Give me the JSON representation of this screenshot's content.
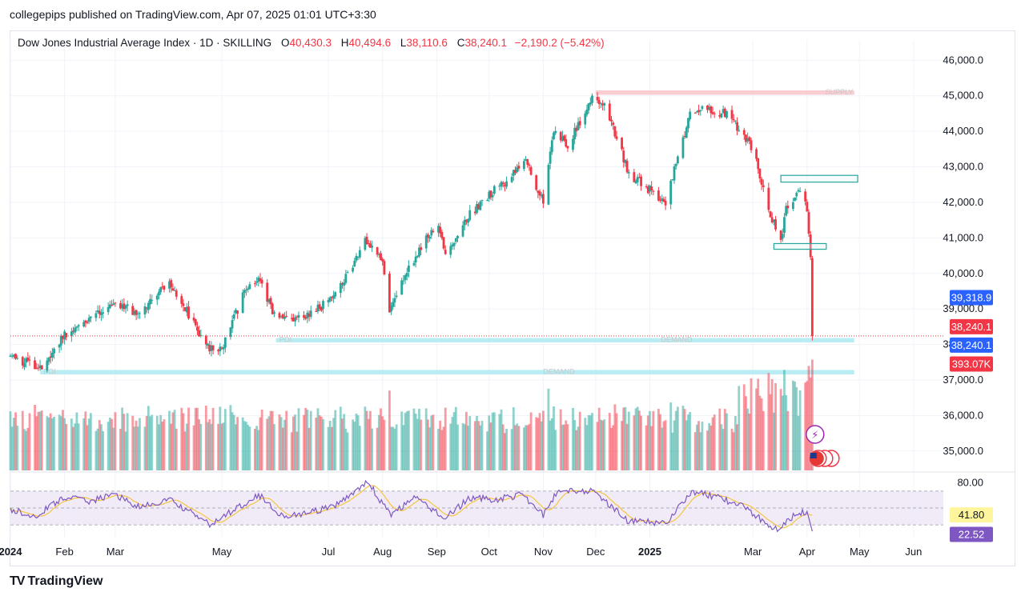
{
  "header": {
    "publisher_line": "collegepips published on TradingView.com, Apr 07, 2025 01:01 UTC+3:30"
  },
  "legend": {
    "symbol": "Dow Jones Industrial Average Index · 1D · SKILLING",
    "open_label": "O",
    "open": "40,430.3",
    "high_label": "H",
    "high": "40,494.6",
    "low_label": "L",
    "low": "38,110.6",
    "close_label": "C",
    "close": "38,240.1",
    "change": "−2,190.2 (−5.42%)"
  },
  "footer": {
    "logo_mark": "TV",
    "brand": "TradingView"
  },
  "colors": {
    "up": "#26a69a",
    "down": "#f23645",
    "rsi": "#7e57c2",
    "rsi_ma": "#f5c542",
    "rsi_band": "#ede7f6",
    "zone": "#b2ebf2",
    "supply": "#f8c8cc",
    "badge_blue": "#2962ff"
  },
  "chart_data": {
    "type": "candlestick",
    "price_axis": {
      "min": 34500,
      "max": 46300,
      "ticks": [
        {
          "v": 46000,
          "t": "46,000.0"
        },
        {
          "v": 45000,
          "t": "45,000.0"
        },
        {
          "v": 44000,
          "t": "44,000.0"
        },
        {
          "v": 43000,
          "t": "43,000.0"
        },
        {
          "v": 42000,
          "t": "42,000.0"
        },
        {
          "v": 41000,
          "t": "41,000.0"
        },
        {
          "v": 40000,
          "t": "40,000.0"
        },
        {
          "v": 39000,
          "t": "39,000.0"
        },
        {
          "v": 38000,
          "t": "38,000.0"
        },
        {
          "v": 37000,
          "t": "37,000.0"
        },
        {
          "v": 36000,
          "t": "36,000.0"
        },
        {
          "v": 35000,
          "t": "35,000.0"
        }
      ]
    },
    "time_axis": [
      {
        "t": "2024",
        "d": "2024-01-01",
        "bold": true
      },
      {
        "t": "Feb",
        "d": "2024-02-01"
      },
      {
        "t": "Mar",
        "d": "2024-03-01"
      },
      {
        "t": "May",
        "d": "2024-05-01"
      },
      {
        "t": "Jul",
        "d": "2024-07-01"
      },
      {
        "t": "Aug",
        "d": "2024-08-01"
      },
      {
        "t": "Sep",
        "d": "2024-09-01"
      },
      {
        "t": "Oct",
        "d": "2024-10-01"
      },
      {
        "t": "Nov",
        "d": "2024-11-01"
      },
      {
        "t": "Dec",
        "d": "2024-12-01"
      },
      {
        "t": "2025",
        "d": "2025-01-01",
        "bold": true
      },
      {
        "t": "Mar",
        "d": "2025-03-01"
      },
      {
        "t": "Apr",
        "d": "2025-04-01"
      },
      {
        "t": "May",
        "d": "2025-05-01"
      },
      {
        "t": "Jun",
        "d": "2025-06-01"
      }
    ],
    "close_path": [
      [
        "2024-01-01",
        37700
      ],
      [
        "2024-01-18",
        37300
      ],
      [
        "2024-02-01",
        38300
      ],
      [
        "2024-02-15",
        38700
      ],
      [
        "2024-03-01",
        39100
      ],
      [
        "2024-03-15",
        38900
      ],
      [
        "2024-04-01",
        39800
      ],
      [
        "2024-04-15",
        38600
      ],
      [
        "2024-04-22",
        37900
      ],
      [
        "2024-05-01",
        37900
      ],
      [
        "2024-05-15",
        39600
      ],
      [
        "2024-05-22",
        39900
      ],
      [
        "2024-06-01",
        38700
      ],
      [
        "2024-06-15",
        38700
      ],
      [
        "2024-07-01",
        39200
      ],
      [
        "2024-07-15",
        40200
      ],
      [
        "2024-07-22",
        41000
      ],
      [
        "2024-08-01",
        40400
      ],
      [
        "2024-08-05",
        38900
      ],
      [
        "2024-08-15",
        40100
      ],
      [
        "2024-09-01",
        41400
      ],
      [
        "2024-09-07",
        40500
      ],
      [
        "2024-09-15",
        41400
      ],
      [
        "2024-10-01",
        42200
      ],
      [
        "2024-10-15",
        42800
      ],
      [
        "2024-10-22",
        43200
      ],
      [
        "2024-11-01",
        42000
      ],
      [
        "2024-11-07",
        44000
      ],
      [
        "2024-11-15",
        43600
      ],
      [
        "2024-11-29",
        44900
      ],
      [
        "2024-12-06",
        44800
      ],
      [
        "2024-12-20",
        42800
      ],
      [
        "2024-12-28",
        42500
      ],
      [
        "2025-01-10",
        42000
      ],
      [
        "2025-01-24",
        44500
      ],
      [
        "2025-02-01",
        44600
      ],
      [
        "2025-02-15",
        44500
      ],
      [
        "2025-03-01",
        43500
      ],
      [
        "2025-03-12",
        41500
      ],
      [
        "2025-03-17",
        40900
      ],
      [
        "2025-03-20",
        41900
      ],
      [
        "2025-03-27",
        42300
      ],
      [
        "2025-04-01",
        41800
      ],
      [
        "2025-04-03",
        40400
      ],
      [
        "2025-04-04",
        38240
      ]
    ],
    "last_candle": {
      "date": "2025-04-04",
      "open": 40430.3,
      "high": 40494.6,
      "low": 38110.6,
      "close": 38240.1
    },
    "volume_scale_max": 420000,
    "last_volume": 393070,
    "zones": [
      {
        "kind": "supply",
        "label": "SUPPLY",
        "from": "2024-12-01",
        "to": "2025-04-28",
        "low": 45050,
        "high": 45130
      },
      {
        "kind": "demand",
        "label": "DEMAND",
        "poi": "POI",
        "from": "2024-06-01",
        "to": "2025-04-28",
        "low": 38080,
        "high": 38160
      },
      {
        "kind": "demand",
        "label": "DEMAND",
        "poi": "POI",
        "from": "2024-01-18",
        "to": "2025-04-28",
        "low": 37180,
        "high": 37260
      }
    ],
    "boxes": [
      {
        "from": "2025-03-17",
        "to": "2025-04-30",
        "low": 42570,
        "high": 42760
      },
      {
        "from": "2025-03-13",
        "to": "2025-04-12",
        "low": 40680,
        "high": 40840
      }
    ],
    "price_labels": [
      {
        "v": 39318.9,
        "t": "39,318.9",
        "bg": "#2962ff",
        "fg": "#ffffff"
      },
      {
        "v": 38240.1,
        "t": "38,240.1",
        "bg": "#f23645",
        "fg": "#ffffff",
        "stack": -1
      },
      {
        "v": 38240.1,
        "t": "38,240.1",
        "bg": "#2962ff",
        "fg": "#ffffff",
        "stack": 1
      },
      {
        "v": 37450,
        "t": "393.07K",
        "bg": "#f23645",
        "fg": "#ffffff"
      }
    ],
    "rsi": {
      "axis": [
        {
          "v": 80,
          "t": "80.00"
        }
      ],
      "bands": {
        "upper": 70,
        "mid": 50,
        "lower": 30
      },
      "last": 22.52,
      "last_label": "22.52",
      "ma_last": 41.8,
      "ma_label": "41.80",
      "path": [
        [
          "2024-01-01",
          48
        ],
        [
          "2024-01-15",
          40
        ],
        [
          "2024-02-01",
          63
        ],
        [
          "2024-02-15",
          58
        ],
        [
          "2024-03-01",
          66
        ],
        [
          "2024-03-15",
          50
        ],
        [
          "2024-04-01",
          60
        ],
        [
          "2024-04-15",
          42
        ],
        [
          "2024-04-25",
          30
        ],
        [
          "2024-05-05",
          44
        ],
        [
          "2024-05-22",
          66
        ],
        [
          "2024-06-05",
          40
        ],
        [
          "2024-06-20",
          44
        ],
        [
          "2024-07-05",
          52
        ],
        [
          "2024-07-18",
          74
        ],
        [
          "2024-07-24",
          80
        ],
        [
          "2024-08-05",
          42
        ],
        [
          "2024-08-20",
          62
        ],
        [
          "2024-09-06",
          38
        ],
        [
          "2024-09-20",
          62
        ],
        [
          "2024-10-05",
          60
        ],
        [
          "2024-10-20",
          66
        ],
        [
          "2024-11-01",
          42
        ],
        [
          "2024-11-10",
          72
        ],
        [
          "2024-11-29",
          70
        ],
        [
          "2024-12-10",
          52
        ],
        [
          "2024-12-20",
          34
        ],
        [
          "2025-01-10",
          32
        ],
        [
          "2025-01-25",
          70
        ],
        [
          "2025-02-10",
          62
        ],
        [
          "2025-02-25",
          50
        ],
        [
          "2025-03-10",
          30
        ],
        [
          "2025-03-15",
          26
        ],
        [
          "2025-03-25",
          42
        ],
        [
          "2025-04-01",
          46
        ],
        [
          "2025-04-04",
          22.52
        ]
      ]
    }
  }
}
